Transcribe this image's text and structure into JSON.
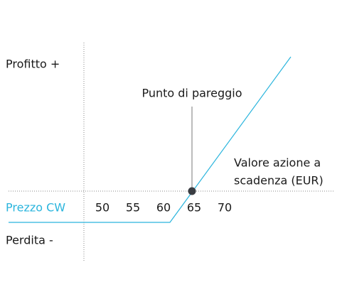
{
  "labels": {
    "profit": "Profitto +",
    "loss": "Perdita -",
    "price": "Prezzo CW",
    "breakeven": "Punto di pareggio",
    "underlying_line1": "Valore azione a",
    "underlying_line2": "scadenza (EUR)"
  },
  "x_axis": {
    "ticks": [
      50,
      55,
      60,
      65,
      70
    ]
  }
}
